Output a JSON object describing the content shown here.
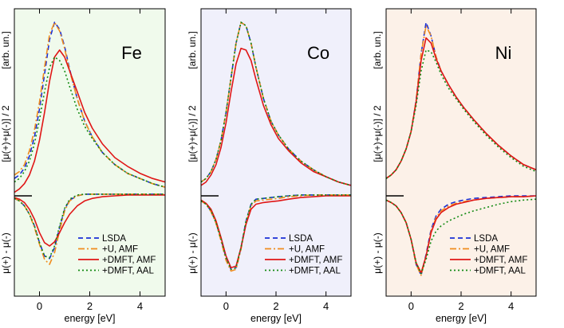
{
  "chart_data": [
    {
      "type": "line",
      "title": "Fe",
      "panel_bg": "#f0faec",
      "xlabel": "energy   [eV]",
      "ylabel_upper": "[μ(+)+μ(-)] / 2",
      "ylabel_unit": "[arb. un.]",
      "ylabel_lower": "μ(+) - μ(-)",
      "xlim": [
        -1,
        5
      ],
      "xticks": [
        0,
        2,
        4
      ],
      "show_ylabels": true,
      "legend": [
        "LSDA",
        "+U, AMF",
        "+DMFT, AMF",
        "+DMFT, AAL"
      ],
      "series": [
        {
          "name": "LSDA",
          "x": [
            -1,
            -0.8,
            -0.6,
            -0.4,
            -0.2,
            0,
            0.2,
            0.4,
            0.6,
            0.8,
            1,
            1.2,
            1.5,
            1.8,
            2.1,
            2.5,
            3,
            3.5,
            4,
            4.5,
            5
          ],
          "upper": [
            0.1,
            0.12,
            0.16,
            0.23,
            0.34,
            0.5,
            0.7,
            0.9,
            1.0,
            0.96,
            0.86,
            0.73,
            0.56,
            0.43,
            0.34,
            0.25,
            0.18,
            0.13,
            0.1,
            0.07,
            0.05
          ],
          "lower": [
            -0.03,
            -0.06,
            -0.12,
            -0.22,
            -0.36,
            -0.56,
            -0.72,
            -0.75,
            -0.62,
            -0.38,
            -0.16,
            -0.05,
            0,
            0.02,
            0.02,
            0.02,
            0.02,
            0.02,
            0.02,
            0.02,
            0.02
          ]
        },
        {
          "name": "+U, AMF",
          "x": [
            -1,
            -0.8,
            -0.6,
            -0.4,
            -0.2,
            0,
            0.2,
            0.4,
            0.6,
            0.8,
            1,
            1.2,
            1.5,
            1.8,
            2.1,
            2.5,
            3,
            3.5,
            4,
            4.5,
            5
          ],
          "upper": [
            0.12,
            0.14,
            0.18,
            0.26,
            0.38,
            0.54,
            0.74,
            0.93,
            1.0,
            0.95,
            0.85,
            0.72,
            0.56,
            0.43,
            0.34,
            0.25,
            0.18,
            0.13,
            0.1,
            0.07,
            0.05
          ],
          "lower": [
            -0.03,
            -0.06,
            -0.12,
            -0.22,
            -0.38,
            -0.58,
            -0.76,
            -0.82,
            -0.68,
            -0.42,
            -0.18,
            -0.06,
            0,
            0.02,
            0.02,
            0.02,
            0.02,
            0.02,
            0.02,
            0.02,
            0.02
          ]
        },
        {
          "name": "+DMFT, AMF",
          "x": [
            -1,
            -0.8,
            -0.6,
            -0.4,
            -0.2,
            0,
            0.2,
            0.4,
            0.6,
            0.8,
            1,
            1.2,
            1.5,
            1.8,
            2.1,
            2.5,
            3,
            3.5,
            4,
            4.5,
            5
          ],
          "upper": [
            0.02,
            0.04,
            0.07,
            0.12,
            0.2,
            0.32,
            0.48,
            0.66,
            0.8,
            0.84,
            0.8,
            0.72,
            0.6,
            0.48,
            0.39,
            0.3,
            0.22,
            0.17,
            0.13,
            0.1,
            0.08
          ],
          "lower": [
            -0.02,
            -0.04,
            -0.08,
            -0.16,
            -0.28,
            -0.44,
            -0.56,
            -0.6,
            -0.55,
            -0.44,
            -0.32,
            -0.22,
            -0.12,
            -0.06,
            -0.03,
            -0.01,
            0,
            0.01,
            0.01,
            0.01,
            0.01
          ]
        },
        {
          "name": "+DMFT, AAL",
          "x": [
            -1,
            -0.8,
            -0.6,
            -0.4,
            -0.2,
            0,
            0.2,
            0.4,
            0.6,
            0.8,
            1,
            1.2,
            1.5,
            1.8,
            2.1,
            2.5,
            3,
            3.5,
            4,
            4.5,
            5
          ],
          "upper": [
            0.08,
            0.1,
            0.14,
            0.2,
            0.3,
            0.44,
            0.6,
            0.74,
            0.8,
            0.78,
            0.72,
            0.63,
            0.5,
            0.4,
            0.33,
            0.25,
            0.18,
            0.13,
            0.1,
            0.07,
            0.05
          ],
          "lower": [
            -0.03,
            -0.06,
            -0.12,
            -0.22,
            -0.36,
            -0.56,
            -0.72,
            -0.74,
            -0.6,
            -0.36,
            -0.15,
            -0.04,
            0.01,
            0.02,
            0.02,
            0.02,
            0.02,
            0.02,
            0.02,
            0.02,
            0.02
          ]
        }
      ]
    },
    {
      "type": "line",
      "title": "Co",
      "panel_bg": "#f0f0fb",
      "xlabel": "energy   [eV]",
      "ylabel_upper": "[μ(+)+μ(-)] / 2",
      "ylabel_unit": "[arb. un.]",
      "ylabel_lower": "μ(+) - μ(-)",
      "xlim": [
        -1,
        5
      ],
      "xticks": [
        0,
        2,
        4
      ],
      "show_ylabels": true,
      "legend": [
        "LSDA",
        "+U, AMF",
        "+DMFT, AMF",
        "+DMFT, AAL"
      ],
      "series": [
        {
          "name": "LSDA",
          "x": [
            -1,
            -0.8,
            -0.6,
            -0.4,
            -0.2,
            0,
            0.2,
            0.4,
            0.6,
            0.8,
            1,
            1.2,
            1.5,
            1.8,
            2.1,
            2.5,
            3,
            3.5,
            4,
            4.5,
            5
          ],
          "upper": [
            0.08,
            0.1,
            0.14,
            0.21,
            0.32,
            0.48,
            0.68,
            0.88,
            1.0,
            0.98,
            0.88,
            0.74,
            0.56,
            0.43,
            0.35,
            0.27,
            0.2,
            0.15,
            0.11,
            0.08,
            0.06
          ],
          "lower": [
            -0.06,
            -0.1,
            -0.18,
            -0.32,
            -0.52,
            -0.74,
            -0.88,
            -0.86,
            -0.62,
            -0.3,
            -0.1,
            -0.04,
            -0.03,
            -0.02,
            -0.01,
            0,
            0.01,
            0.01,
            0.01,
            0.01,
            0.01
          ]
        },
        {
          "name": "+U, AMF",
          "x": [
            -1,
            -0.8,
            -0.6,
            -0.4,
            -0.2,
            0,
            0.2,
            0.4,
            0.6,
            0.8,
            1,
            1.2,
            1.5,
            1.8,
            2.1,
            2.5,
            3,
            3.5,
            4,
            4.5,
            5
          ],
          "upper": [
            0.08,
            0.1,
            0.14,
            0.21,
            0.32,
            0.48,
            0.68,
            0.88,
            1.0,
            0.98,
            0.88,
            0.74,
            0.56,
            0.43,
            0.35,
            0.27,
            0.2,
            0.15,
            0.11,
            0.08,
            0.06
          ],
          "lower": [
            -0.06,
            -0.1,
            -0.19,
            -0.33,
            -0.54,
            -0.77,
            -0.9,
            -0.88,
            -0.64,
            -0.32,
            -0.12,
            -0.06,
            -0.05,
            -0.04,
            -0.03,
            -0.01,
            0,
            0.01,
            0.01,
            0.01,
            0.01
          ]
        },
        {
          "name": "+DMFT, AMF",
          "x": [
            -1,
            -0.8,
            -0.6,
            -0.4,
            -0.2,
            0,
            0.2,
            0.4,
            0.6,
            0.8,
            1,
            1.2,
            1.5,
            1.8,
            2.1,
            2.5,
            3,
            3.5,
            4,
            4.5,
            5
          ],
          "upper": [
            0.06,
            0.08,
            0.12,
            0.18,
            0.28,
            0.42,
            0.6,
            0.76,
            0.85,
            0.84,
            0.78,
            0.67,
            0.52,
            0.41,
            0.33,
            0.26,
            0.19,
            0.14,
            0.11,
            0.08,
            0.06
          ],
          "lower": [
            -0.05,
            -0.09,
            -0.16,
            -0.3,
            -0.5,
            -0.72,
            -0.86,
            -0.84,
            -0.62,
            -0.34,
            -0.16,
            -0.1,
            -0.08,
            -0.07,
            -0.06,
            -0.04,
            -0.02,
            -0.01,
            0,
            0,
            0
          ]
        },
        {
          "name": "+DMFT, AAL",
          "x": [
            -1,
            -0.8,
            -0.6,
            -0.4,
            -0.2,
            0,
            0.2,
            0.4,
            0.6,
            0.8,
            1,
            1.2,
            1.5,
            1.8,
            2.1,
            2.5,
            3,
            3.5,
            4,
            4.5,
            5
          ],
          "upper": [
            0.08,
            0.1,
            0.14,
            0.21,
            0.32,
            0.48,
            0.68,
            0.88,
            1.0,
            0.98,
            0.88,
            0.74,
            0.56,
            0.43,
            0.35,
            0.27,
            0.2,
            0.15,
            0.11,
            0.08,
            0.06
          ],
          "lower": [
            -0.06,
            -0.1,
            -0.18,
            -0.32,
            -0.52,
            -0.74,
            -0.88,
            -0.86,
            -0.62,
            -0.3,
            -0.1,
            -0.04,
            -0.03,
            -0.02,
            -0.01,
            0,
            0.01,
            0.01,
            0.01,
            0.01,
            0.01
          ]
        }
      ]
    },
    {
      "type": "line",
      "title": "Ni",
      "panel_bg": "#fcf1e8",
      "xlabel": "energy   [eV]",
      "ylabel_upper": "[μ(+)+μ(-)] / 2",
      "ylabel_unit": "[arb. un.]",
      "ylabel_lower": "μ(+) - μ(-)",
      "xlim": [
        -1,
        5
      ],
      "xticks": [
        0,
        2,
        4
      ],
      "show_ylabels": true,
      "legend": [
        "LSDA",
        "+U, AMF",
        "+DMFT, AMF",
        "+DMFT, AAL"
      ],
      "series": [
        {
          "name": "LSDA",
          "x": [
            -1,
            -0.8,
            -0.6,
            -0.4,
            -0.2,
            0,
            0.2,
            0.4,
            0.6,
            0.8,
            1,
            1.2,
            1.5,
            1.8,
            2.1,
            2.5,
            3,
            3.5,
            4,
            4.5,
            5
          ],
          "upper": [
            0.1,
            0.12,
            0.15,
            0.2,
            0.27,
            0.37,
            0.55,
            0.82,
            1.0,
            0.92,
            0.8,
            0.72,
            0.64,
            0.57,
            0.51,
            0.44,
            0.36,
            0.29,
            0.23,
            0.18,
            0.15
          ],
          "lower": [
            -0.05,
            -0.08,
            -0.12,
            -0.2,
            -0.32,
            -0.52,
            -0.82,
            -0.95,
            -0.7,
            -0.4,
            -0.24,
            -0.16,
            -0.1,
            -0.07,
            -0.05,
            -0.03,
            -0.02,
            -0.01,
            0,
            0,
            0
          ]
        },
        {
          "name": "+U, AMF",
          "x": [
            -1,
            -0.8,
            -0.6,
            -0.4,
            -0.2,
            0,
            0.2,
            0.4,
            0.6,
            0.8,
            1,
            1.2,
            1.5,
            1.8,
            2.1,
            2.5,
            3,
            3.5,
            4,
            4.5,
            5
          ],
          "upper": [
            0.1,
            0.12,
            0.15,
            0.2,
            0.27,
            0.37,
            0.55,
            0.82,
            0.98,
            0.92,
            0.8,
            0.72,
            0.64,
            0.57,
            0.51,
            0.44,
            0.36,
            0.29,
            0.23,
            0.18,
            0.15
          ],
          "lower": [
            -0.05,
            -0.08,
            -0.12,
            -0.2,
            -0.32,
            -0.52,
            -0.82,
            -0.95,
            -0.72,
            -0.42,
            -0.26,
            -0.18,
            -0.12,
            -0.09,
            -0.07,
            -0.05,
            -0.03,
            -0.02,
            -0.01,
            -0.01,
            0
          ]
        },
        {
          "name": "+DMFT, AMF",
          "x": [
            -1,
            -0.8,
            -0.6,
            -0.4,
            -0.2,
            0,
            0.2,
            0.4,
            0.6,
            0.8,
            1,
            1.2,
            1.5,
            1.8,
            2.1,
            2.5,
            3,
            3.5,
            4,
            4.5,
            5
          ],
          "upper": [
            0.1,
            0.12,
            0.15,
            0.2,
            0.27,
            0.37,
            0.54,
            0.78,
            0.91,
            0.88,
            0.79,
            0.72,
            0.64,
            0.57,
            0.51,
            0.44,
            0.36,
            0.29,
            0.23,
            0.18,
            0.15
          ],
          "lower": [
            -0.05,
            -0.08,
            -0.12,
            -0.2,
            -0.32,
            -0.52,
            -0.8,
            -0.92,
            -0.72,
            -0.44,
            -0.28,
            -0.2,
            -0.14,
            -0.1,
            -0.08,
            -0.05,
            -0.03,
            -0.02,
            -0.01,
            -0.01,
            0
          ]
        },
        {
          "name": "+DMFT, AAL",
          "x": [
            -1,
            -0.8,
            -0.6,
            -0.4,
            -0.2,
            0,
            0.2,
            0.4,
            0.6,
            0.8,
            1,
            1.2,
            1.5,
            1.8,
            2.1,
            2.5,
            3,
            3.5,
            4,
            4.5,
            5
          ],
          "upper": [
            0.1,
            0.12,
            0.15,
            0.2,
            0.27,
            0.37,
            0.52,
            0.72,
            0.84,
            0.83,
            0.77,
            0.7,
            0.62,
            0.56,
            0.5,
            0.43,
            0.35,
            0.28,
            0.22,
            0.17,
            0.14
          ],
          "lower": [
            -0.05,
            -0.08,
            -0.12,
            -0.2,
            -0.32,
            -0.52,
            -0.8,
            -0.93,
            -0.76,
            -0.54,
            -0.42,
            -0.36,
            -0.3,
            -0.26,
            -0.22,
            -0.18,
            -0.14,
            -0.1,
            -0.07,
            -0.05,
            -0.04
          ]
        }
      ]
    }
  ],
  "series_styles": [
    {
      "name": "LSDA",
      "color": "#1a2fd6",
      "dash": "6,4"
    },
    {
      "name": "+U, AMF",
      "color": "#f08c1e",
      "dash": "8,3,2,3"
    },
    {
      "name": "+DMFT, AMF",
      "color": "#e01616",
      "dash": ""
    },
    {
      "name": "+DMFT, AAL",
      "color": "#138a13",
      "dash": "2,3"
    }
  ]
}
